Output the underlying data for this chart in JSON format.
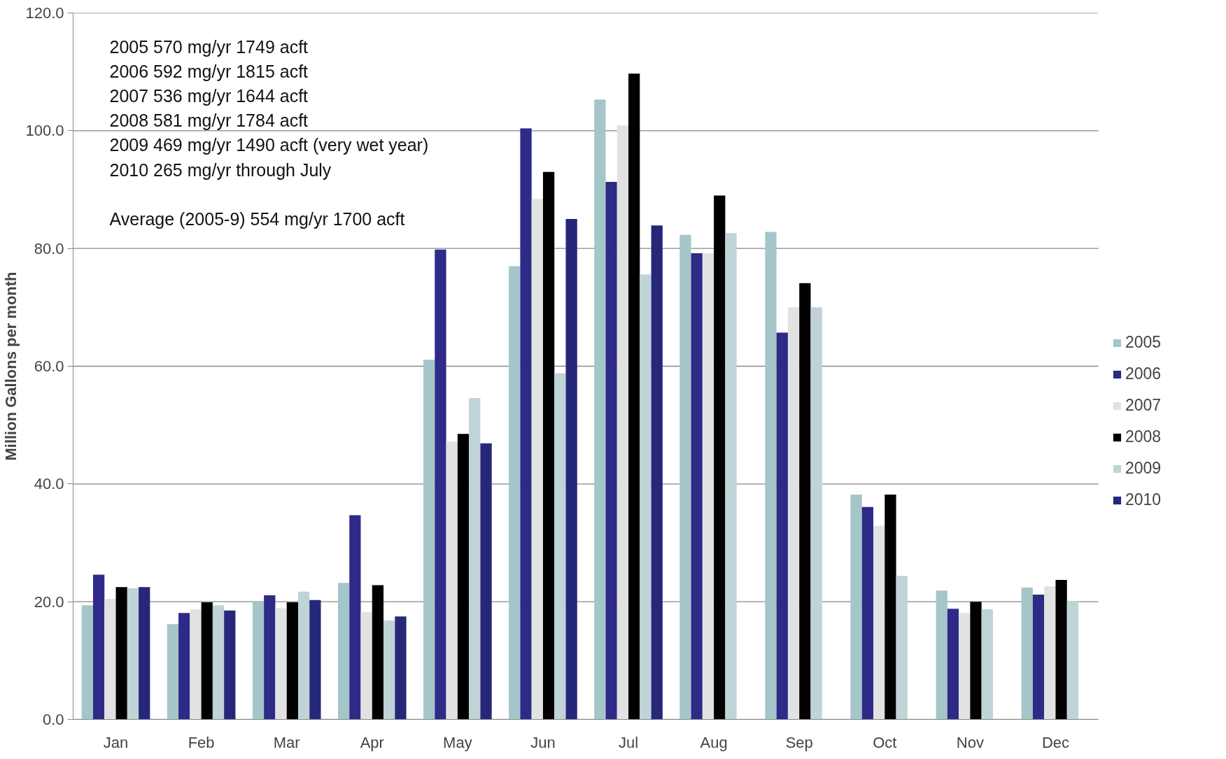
{
  "chart_data": {
    "type": "bar",
    "ylabel": "Million Gallons per month",
    "categories": [
      "Jan",
      "Feb",
      "Mar",
      "Apr",
      "May",
      "Jun",
      "Jul",
      "Aug",
      "Sep",
      "Oct",
      "Nov",
      "Dec"
    ],
    "series": [
      {
        "name": "2005",
        "color": "#a5c6c9",
        "values": [
          19.4,
          16.2,
          20.0,
          23.2,
          61.1,
          77.0,
          105.3,
          82.3,
          82.8,
          38.2,
          21.9,
          22.4
        ]
      },
      {
        "name": "2006",
        "color": "#2e2a87",
        "values": [
          24.6,
          18.1,
          21.1,
          34.7,
          79.8,
          100.4,
          91.3,
          79.2,
          65.7,
          36.1,
          18.8,
          21.2
        ]
      },
      {
        "name": "2007",
        "color": "#e2e2e2",
        "values": [
          20.5,
          18.7,
          18.9,
          18.2,
          47.2,
          88.4,
          100.9,
          79.2,
          70.0,
          32.9,
          18.1,
          22.6
        ]
      },
      {
        "name": "2008",
        "color": "#000000",
        "values": [
          22.5,
          19.9,
          19.9,
          22.8,
          48.5,
          93.0,
          109.7,
          89.0,
          74.1,
          38.2,
          20.0,
          23.7
        ]
      },
      {
        "name": "2009",
        "color": "#c0d3d7",
        "values": [
          22.3,
          19.4,
          21.7,
          16.8,
          54.6,
          58.8,
          75.6,
          82.6,
          70.0,
          24.4,
          18.7,
          20.1
        ]
      },
      {
        "name": "2010",
        "color": "#27277a",
        "values": [
          22.5,
          18.5,
          20.3,
          17.5,
          46.9,
          85.0,
          83.9,
          null,
          null,
          null,
          null,
          null
        ]
      }
    ],
    "ylim": [
      0,
      120
    ],
    "yticks": [
      {
        "value": 0,
        "label": "0.0"
      },
      {
        "value": 20,
        "label": "20.0"
      },
      {
        "value": 40,
        "label": "40.0"
      },
      {
        "value": 60,
        "label": "60.0"
      },
      {
        "value": 80,
        "label": "80.0"
      },
      {
        "value": 100,
        "label": "100.0"
      },
      {
        "value": 120,
        "label": "120.0"
      }
    ],
    "grid": "y",
    "legend": "right",
    "annotations": [
      "2005   570 mg/yr  1749 acft",
      "2006   592 mg/yr  1815 acft",
      "2007   536 mg/yr  1644 acft",
      "2008   581 mg/yr  1784 acft",
      "2009   469 mg/yr  1490 acft (very wet year)",
      "2010   265 mg/yr   through July",
      "Average (2005-9)    554 mg/yr   1700 acft"
    ]
  }
}
